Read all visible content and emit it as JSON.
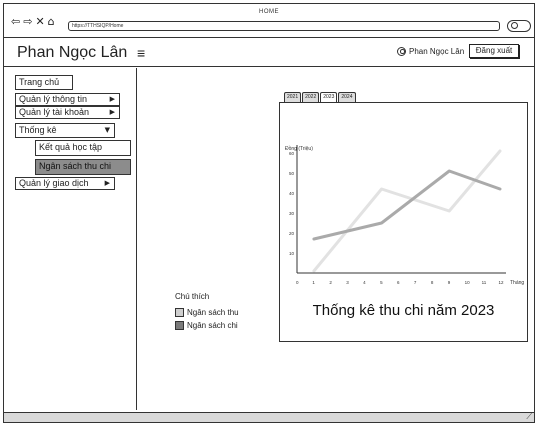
{
  "window": {
    "title": "HOME",
    "url": "https://TTHSIQP/Home"
  },
  "nav": {
    "back": "⇦",
    "forward": "⇨",
    "close": "✕",
    "home": "⌂"
  },
  "header": {
    "app_name": "Phan Ngọc Lân",
    "user_name": "Phan Ngọc Lân",
    "logout_label": "Đăng xuất"
  },
  "sidebar": {
    "items": [
      {
        "label": "Trang chủ"
      },
      {
        "label": "Quản lý thông tin"
      },
      {
        "label": "Quản lý tài khoản"
      },
      {
        "label": "Thống kê"
      },
      {
        "label": "Kết quả học tập"
      },
      {
        "label": "Ngân sách thu chi"
      },
      {
        "label": "Quản lý giao dịch"
      }
    ]
  },
  "tabs": [
    "2021",
    "2022",
    "2023",
    "2024"
  ],
  "selected_tab": "2023",
  "legend": {
    "title": "Chú thích",
    "items": [
      {
        "label": "Ngân sách thu",
        "color": "#cfcfcf"
      },
      {
        "label": "Ngân sách chi",
        "color": "#7a7a7a"
      }
    ]
  },
  "colors": {
    "series_income": "#e2e2e2",
    "series_expense": "#aaaaaa",
    "active_menu": "#8c8c8c"
  },
  "chart_data": {
    "type": "line",
    "title": "Thống kê thu chi năm 2023",
    "ylabel": "Đồng (Triệu)",
    "xlabel": "Tháng",
    "x": [
      1,
      2,
      3,
      4,
      5,
      6,
      7,
      8,
      9,
      10,
      11,
      12
    ],
    "xlim": [
      0,
      12
    ],
    "ylim": [
      0,
      60
    ],
    "yticks": [
      10,
      20,
      30,
      40,
      50,
      60
    ],
    "series": [
      {
        "name": "Ngân sách thu",
        "x": [
          1,
          5,
          9,
          12
        ],
        "values": [
          1,
          42,
          31,
          61
        ]
      },
      {
        "name": "Ngân sách chi",
        "x": [
          1,
          5,
          9,
          12
        ],
        "values": [
          17,
          25,
          51,
          42
        ]
      }
    ]
  }
}
